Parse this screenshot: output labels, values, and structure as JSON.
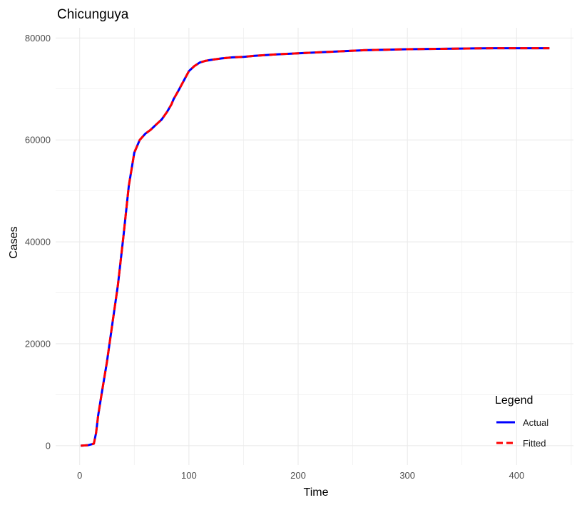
{
  "chart_data": {
    "type": "line",
    "title": "Chicunguya",
    "xlabel": "Time",
    "ylabel": "Cases",
    "xlim": [
      -22,
      452
    ],
    "ylim": [
      -3800,
      82000
    ],
    "x_ticks": [
      0,
      100,
      200,
      300,
      400
    ],
    "y_ticks": [
      0,
      20000,
      40000,
      60000,
      80000
    ],
    "x_tick_labels": [
      "0",
      "100",
      "200",
      "300",
      "400"
    ],
    "y_tick_labels": [
      "0",
      "20000",
      "40000",
      "60000",
      "80000"
    ],
    "grid": true,
    "legend": {
      "title": "Legend",
      "position": "bottom-right",
      "entries": [
        "Actual",
        "Fitted"
      ]
    },
    "colors": {
      "actual": "#0000ff",
      "fitted": "#ff0000",
      "grid": "#ebebeb"
    },
    "series": [
      {
        "name": "Actual",
        "style": "solid",
        "x": [
          1,
          8,
          13,
          15,
          17,
          20,
          25,
          30,
          35,
          40,
          45,
          50,
          55,
          60,
          65,
          70,
          75,
          80,
          84,
          86,
          90,
          95,
          100,
          105,
          110,
          115,
          120,
          130,
          140,
          150,
          160,
          180,
          200,
          220,
          240,
          260,
          280,
          300,
          320,
          340,
          360,
          380,
          400,
          430
        ],
        "y": [
          0,
          100,
          400,
          2500,
          6000,
          10000,
          16500,
          24000,
          31500,
          41000,
          51000,
          57500,
          60000,
          61200,
          62000,
          63000,
          64000,
          65500,
          67000,
          68000,
          69500,
          71500,
          73500,
          74500,
          75200,
          75500,
          75700,
          76000,
          76200,
          76300,
          76500,
          76800,
          77000,
          77200,
          77400,
          77600,
          77700,
          77800,
          77850,
          77900,
          77950,
          78000,
          78000,
          78000
        ]
      },
      {
        "name": "Fitted",
        "style": "dashed",
        "x": [
          1,
          8,
          13,
          15,
          17,
          20,
          25,
          30,
          35,
          40,
          45,
          50,
          55,
          60,
          65,
          70,
          75,
          80,
          84,
          86,
          90,
          95,
          100,
          105,
          110,
          115,
          120,
          130,
          140,
          150,
          160,
          180,
          200,
          220,
          240,
          260,
          280,
          300,
          320,
          340,
          360,
          380,
          400,
          430
        ],
        "y": [
          0,
          100,
          400,
          2500,
          6000,
          10000,
          16500,
          24000,
          31500,
          41000,
          51000,
          57500,
          60000,
          61200,
          62000,
          63000,
          64000,
          65500,
          67000,
          68000,
          69500,
          71500,
          73500,
          74500,
          75200,
          75500,
          75700,
          76000,
          76200,
          76300,
          76500,
          76800,
          77000,
          77200,
          77400,
          77600,
          77700,
          77800,
          77850,
          77900,
          77950,
          78000,
          78000,
          78000
        ]
      }
    ]
  }
}
